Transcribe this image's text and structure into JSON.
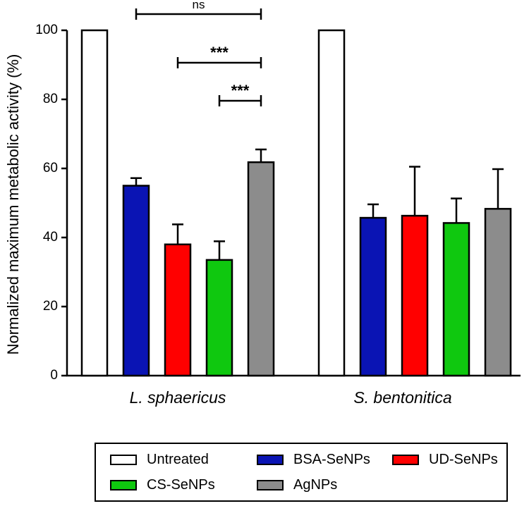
{
  "chart_data": {
    "type": "bar",
    "ylabel": "Normalized maximum metabolic activity  (%)",
    "ylim": [
      0,
      100
    ],
    "yticks": [
      0,
      20,
      40,
      60,
      80,
      100
    ],
    "categories": [
      "L. sphaericus",
      "S. bentonitica"
    ],
    "series": [
      {
        "name": "Untreated",
        "color": "#ffffff",
        "values": [
          100,
          100
        ],
        "errors": [
          0,
          0
        ]
      },
      {
        "name": "BSA-SeNPs",
        "color": "#0a14b4",
        "values": [
          55,
          45.7
        ],
        "errors": [
          2.2,
          3.9
        ]
      },
      {
        "name": "UD-SeNPs",
        "color": "#ff0000",
        "values": [
          38,
          46.3
        ],
        "errors": [
          5.8,
          14.2
        ]
      },
      {
        "name": "CS-SeNPs",
        "color": "#0fc80f",
        "values": [
          33.5,
          44.2
        ],
        "errors": [
          5.4,
          7.1
        ]
      },
      {
        "name": "AgNPs",
        "color": "#8c8c8c",
        "values": [
          61.8,
          48.3
        ],
        "errors": [
          3.7,
          11.5
        ]
      }
    ],
    "significance": [
      {
        "label": "ns",
        "from": "BSA-SeNPs",
        "to": "AgNPs",
        "group": "L. sphaericus"
      },
      {
        "label": "***",
        "from": "UD-SeNPs",
        "to": "AgNPs",
        "group": "L. sphaericus"
      },
      {
        "label": "***",
        "from": "CS-SeNPs",
        "to": "AgNPs",
        "group": "L. sphaericus"
      }
    ]
  }
}
